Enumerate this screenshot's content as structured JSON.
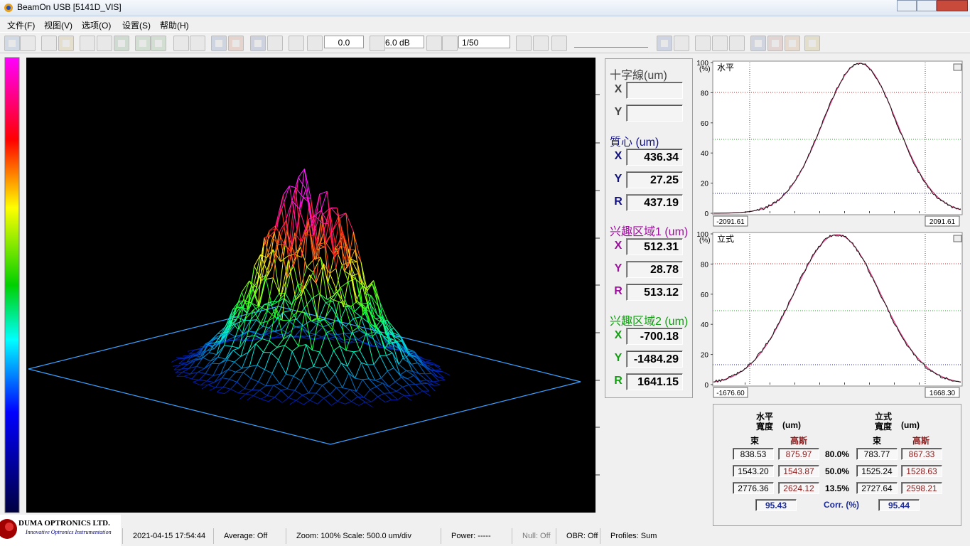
{
  "window": {
    "title": "BeamOn USB  [5141D_VIS]"
  },
  "menu": [
    "文件(F)",
    "视图(V)",
    "选项(O)",
    "设置(S)",
    "帮助(H)"
  ],
  "toolbar": {
    "threshold": "0.0",
    "gain": "6.0 dB",
    "average": "1/50"
  },
  "panel": {
    "crosshair": {
      "title": "十字線(um)",
      "rows": [
        {
          "label": "X"
        },
        {
          "label": "Y"
        }
      ]
    },
    "centroid": {
      "title": "質心 (um)",
      "rows": [
        {
          "label": "X",
          "value": "436.34"
        },
        {
          "label": "Y",
          "value": "27.25"
        },
        {
          "label": "R",
          "value": "437.19"
        }
      ]
    },
    "roi1": {
      "title": "兴趣区域1 (um)",
      "rows": [
        {
          "label": "X",
          "value": "512.31"
        },
        {
          "label": "Y",
          "value": "28.78"
        },
        {
          "label": "R",
          "value": "513.12"
        }
      ]
    },
    "roi2": {
      "title": "兴趣区域2 (um)",
      "rows": [
        {
          "label": "X",
          "value": "-700.18"
        },
        {
          "label": "Y",
          "value": "-1484.29"
        },
        {
          "label": "R",
          "value": "1641.15"
        }
      ]
    }
  },
  "profiles": [
    {
      "title": "水平",
      "unit": "(%)",
      "ylim": [
        0,
        100
      ],
      "yticks": [
        0,
        20,
        40,
        60,
        80,
        100
      ],
      "x_left": "-2091.61",
      "x_right": "2091.61"
    },
    {
      "title": "立式",
      "unit": "(%)",
      "ylim": [
        0,
        100
      ],
      "yticks": [
        0,
        20,
        40,
        60,
        80,
        100
      ],
      "x_left": "-1676.60",
      "x_right": "1668.30"
    }
  ],
  "widths": {
    "horizontal": {
      "title": "水平",
      "subtitle": "寬度",
      "unit": "(um)"
    },
    "vertical": {
      "title": "立式",
      "subtitle": "寬度",
      "unit": "(um)"
    },
    "columns": [
      "束",
      "高斯",
      "束",
      "高斯"
    ],
    "rows": [
      [
        "838.53",
        "875.97",
        "80.0%",
        "783.77",
        "867.33"
      ],
      [
        "1543.20",
        "1543.87",
        "50.0%",
        "1525.24",
        "1528.63"
      ],
      [
        "2776.36",
        "2624.12",
        "13.5%",
        "2727.64",
        "2598.21"
      ]
    ],
    "corr": [
      "95.43",
      "Corr. (%)",
      "95.44"
    ]
  },
  "logo": {
    "name": "DUMA OPTRONICS LTD.",
    "tagline": "Innovative Optronics Instrumentation"
  },
  "status": [
    "2021-04-15 17:54:44",
    "Average: Off",
    "Zoom: 100%  Scale: 500.0 um/div",
    "Power:  -----",
    "Null: Off",
    "OBR: Off",
    "Profiles: Sum"
  ]
}
